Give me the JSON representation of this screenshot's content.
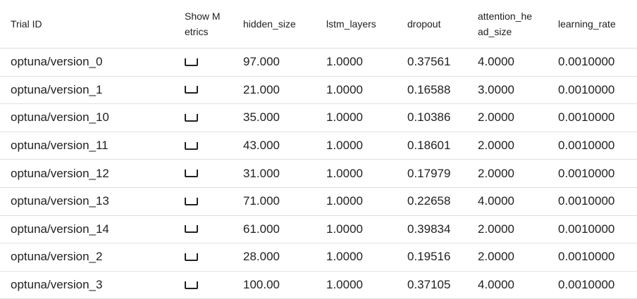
{
  "columns": {
    "trial_id": "Trial ID",
    "show_metrics": "Show Metrics",
    "hidden_size": "hidden_size",
    "lstm_layers": "lstm_layers",
    "dropout": "dropout",
    "attention_head_size": "attention_head_size",
    "learning_rate": "learning_rate"
  },
  "rows": [
    {
      "trial_id": "optuna/version_0",
      "show_metrics": false,
      "hidden_size": "97.000",
      "lstm_layers": "1.0000",
      "dropout": "0.37561",
      "attention_head_size": "4.0000",
      "learning_rate": "0.0010000"
    },
    {
      "trial_id": "optuna/version_1",
      "show_metrics": false,
      "hidden_size": "21.000",
      "lstm_layers": "1.0000",
      "dropout": "0.16588",
      "attention_head_size": "3.0000",
      "learning_rate": "0.0010000"
    },
    {
      "trial_id": "optuna/version_10",
      "show_metrics": false,
      "hidden_size": "35.000",
      "lstm_layers": "1.0000",
      "dropout": "0.10386",
      "attention_head_size": "2.0000",
      "learning_rate": "0.0010000"
    },
    {
      "trial_id": "optuna/version_11",
      "show_metrics": false,
      "hidden_size": "43.000",
      "lstm_layers": "1.0000",
      "dropout": "0.18601",
      "attention_head_size": "2.0000",
      "learning_rate": "0.0010000"
    },
    {
      "trial_id": "optuna/version_12",
      "show_metrics": false,
      "hidden_size": "31.000",
      "lstm_layers": "1.0000",
      "dropout": "0.17979",
      "attention_head_size": "2.0000",
      "learning_rate": "0.0010000"
    },
    {
      "trial_id": "optuna/version_13",
      "show_metrics": false,
      "hidden_size": "71.000",
      "lstm_layers": "1.0000",
      "dropout": "0.22658",
      "attention_head_size": "4.0000",
      "learning_rate": "0.0010000"
    },
    {
      "trial_id": "optuna/version_14",
      "show_metrics": false,
      "hidden_size": "61.000",
      "lstm_layers": "1.0000",
      "dropout": "0.39834",
      "attention_head_size": "2.0000",
      "learning_rate": "0.0010000"
    },
    {
      "trial_id": "optuna/version_2",
      "show_metrics": false,
      "hidden_size": "28.000",
      "lstm_layers": "1.0000",
      "dropout": "0.19516",
      "attention_head_size": "2.0000",
      "learning_rate": "0.0010000"
    },
    {
      "trial_id": "optuna/version_3",
      "show_metrics": false,
      "hidden_size": "100.00",
      "lstm_layers": "1.0000",
      "dropout": "0.37105",
      "attention_head_size": "4.0000",
      "learning_rate": "0.0010000"
    }
  ]
}
